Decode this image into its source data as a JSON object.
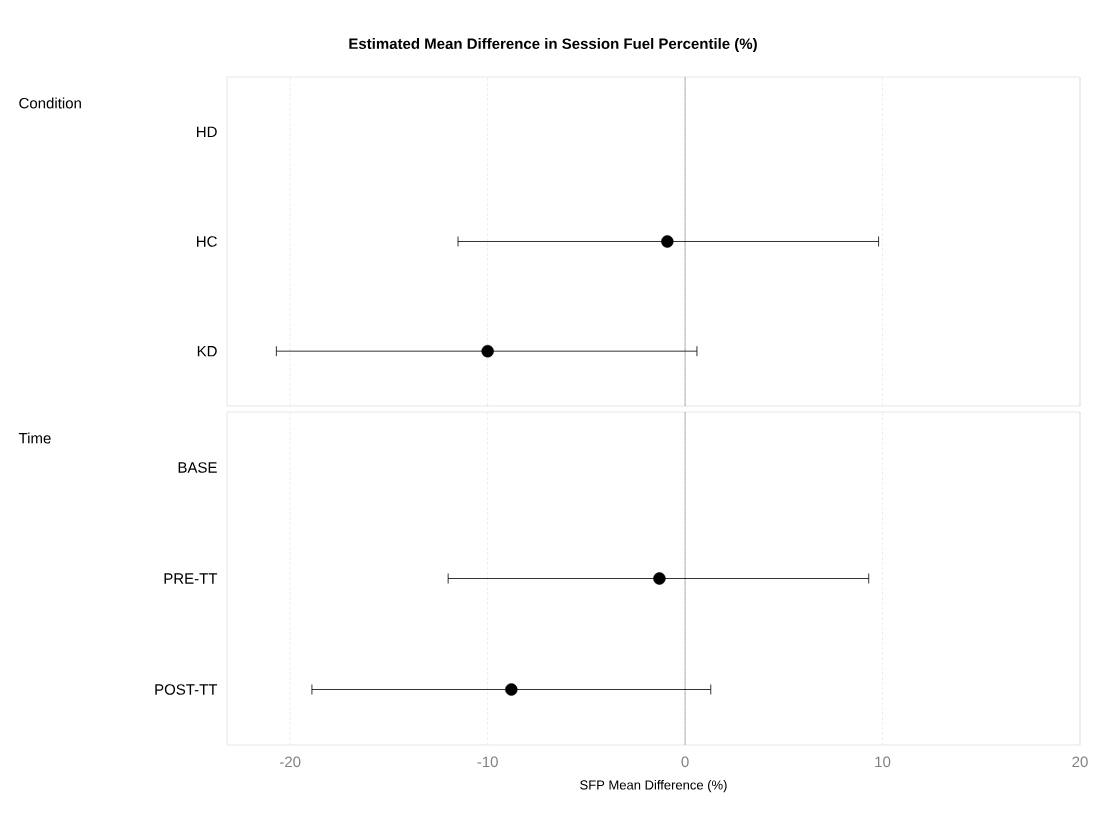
{
  "chart_data": [
    {
      "type": "scatter",
      "orientation": "horizontal",
      "title": "Estimated Mean Difference in Session Fuel Percentile (%)",
      "ylabel": "Condition",
      "categories": [
        "HD",
        "HC",
        "KD"
      ],
      "values": [
        null,
        -0.9,
        -10.0
      ],
      "errors": [
        null,
        [
          -11.5,
          9.8
        ],
        [
          -20.7,
          0.6
        ]
      ],
      "color": "#000000",
      "marker": "circle",
      "xlim": [
        -23.2,
        20
      ],
      "xticks": [
        -20,
        -10,
        0,
        10,
        20
      ],
      "grid": "x",
      "tick_labels": "y",
      "ref_lines": [
        {
          "axis": "x",
          "value": 0,
          "color": "#808080"
        }
      ]
    },
    {
      "type": "scatter",
      "orientation": "horizontal",
      "ylabel": "Time",
      "xlabel": "SFP Mean Difference (%)",
      "categories": [
        "BASE",
        "PRE-TT",
        "POST-TT"
      ],
      "values": [
        null,
        -1.3,
        -8.8
      ],
      "errors": [
        null,
        [
          -12.0,
          9.3
        ],
        [
          -18.9,
          1.3
        ]
      ],
      "color": "#000000",
      "marker": "circle",
      "xlim": [
        -23.2,
        20
      ],
      "xticks": [
        -20,
        -10,
        0,
        10,
        20
      ],
      "grid": "x",
      "ref_lines": [
        {
          "axis": "x",
          "value": 0,
          "color": "#808080"
        }
      ]
    }
  ]
}
